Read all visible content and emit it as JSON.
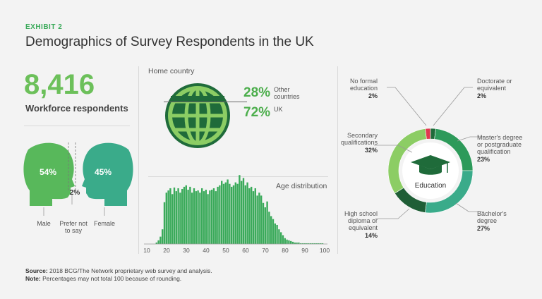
{
  "exhibit": "EXHIBIT 2",
  "title": "Demographics of Survey Respondents in the UK",
  "respondents": {
    "value": "8,416",
    "label": "Workforce respondents"
  },
  "gender": {
    "male_pct": "54%",
    "female_pct": "45%",
    "other_pct": "2%",
    "male_label": "Male",
    "other_label_1": "Prefer not",
    "other_label_2": "to say",
    "female_label": "Female",
    "male_color": "#58b85b",
    "female_color": "#3aab8a"
  },
  "home_country": {
    "title": "Home country",
    "other_pct": "28%",
    "other_label_1": "Other",
    "other_label_2": "countries",
    "uk_pct": "72%",
    "uk_label": "UK"
  },
  "chart_data": [
    {
      "type": "bar",
      "title": "Age distribution",
      "xlabel": "",
      "ylabel": "",
      "x_ticks": [
        10,
        20,
        30,
        40,
        50,
        60,
        70,
        80,
        90,
        100
      ],
      "xlim": [
        10,
        100
      ],
      "x": [
        15,
        16,
        17,
        18,
        19,
        20,
        21,
        22,
        23,
        24,
        25,
        26,
        27,
        28,
        29,
        30,
        31,
        32,
        33,
        34,
        35,
        36,
        37,
        38,
        39,
        40,
        41,
        42,
        43,
        44,
        45,
        46,
        47,
        48,
        49,
        50,
        51,
        52,
        53,
        54,
        55,
        56,
        57,
        58,
        59,
        60,
        61,
        62,
        63,
        64,
        65,
        66,
        67,
        68,
        69,
        70,
        71,
        72,
        73,
        74,
        75,
        76,
        77,
        78,
        79,
        80,
        81,
        82,
        83,
        84,
        85,
        86,
        87,
        88,
        89,
        90,
        91,
        92,
        93,
        94,
        95,
        96,
        97,
        98,
        99
      ],
      "values": [
        2,
        5,
        10,
        20,
        57,
        70,
        73,
        76,
        68,
        77,
        72,
        76,
        70,
        75,
        78,
        80,
        74,
        78,
        70,
        76,
        72,
        73,
        70,
        76,
        72,
        74,
        68,
        73,
        74,
        76,
        72,
        78,
        80,
        86,
        82,
        84,
        88,
        82,
        78,
        80,
        84,
        82,
        94,
        86,
        90,
        80,
        84,
        76,
        78,
        72,
        76,
        66,
        70,
        66,
        56,
        50,
        58,
        44,
        38,
        34,
        28,
        26,
        20,
        16,
        12,
        8,
        6,
        5,
        4,
        3,
        2,
        2,
        2,
        1,
        1,
        1,
        1,
        1,
        1,
        1,
        1,
        1,
        1,
        1,
        1
      ],
      "ylim": [
        0,
        100
      ],
      "color": "#3aaa5a"
    },
    {
      "type": "pie",
      "title": "Education",
      "categories": [
        "No formal education",
        "Doctorate or equivalent",
        "Master's degree or postgraduate qualification",
        "Bachelor's degree",
        "High school diploma or equivalent",
        "Secondary qualifications"
      ],
      "values": [
        2,
        2,
        23,
        27,
        14,
        32
      ],
      "pct_labels": [
        "2%",
        "2%",
        "23%",
        "27%",
        "14%",
        "32%"
      ],
      "colors": [
        "#e0384f",
        "#1f6b3a",
        "#2d9a5a",
        "#3aab8a",
        "#1f5e36",
        "#8ccd64"
      ]
    }
  ],
  "education_labels": {
    "no_formal_1": "No formal",
    "no_formal_2": "education",
    "doctorate_1": "Doctorate or",
    "doctorate_2": "equivalent",
    "masters_1": "Master's degree",
    "masters_2": "or postgraduate",
    "masters_3": "qualification",
    "bachelor_1": "Bachelor's",
    "bachelor_2": "degree",
    "highschool_1": "High school",
    "highschool_2": "diploma or",
    "highschool_3": "equivalent",
    "secondary_1": "Secondary",
    "secondary_2": "qualifications"
  },
  "source": {
    "source_label": "Source:",
    "source_text": "2018 BCG/The Network proprietary web survey and analysis.",
    "note_label": "Note:",
    "note_text": "Percentages may not total 100 because of rounding."
  }
}
